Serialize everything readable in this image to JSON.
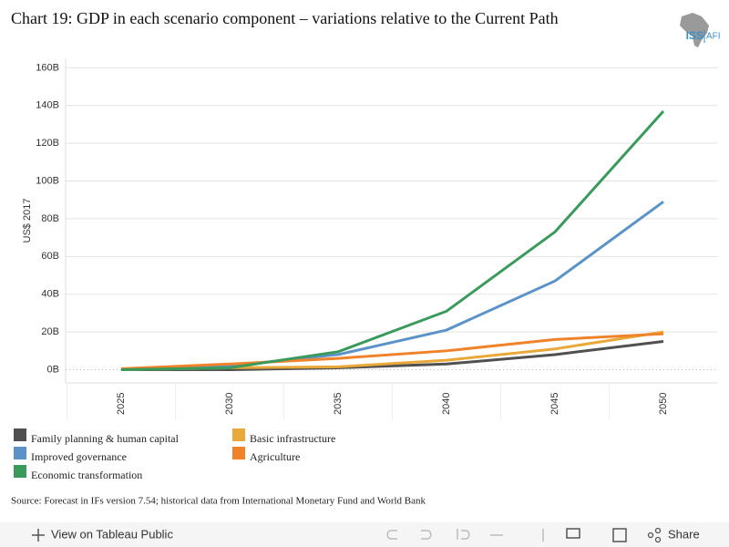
{
  "chart_data": {
    "type": "line",
    "title": "Chart 19: GDP in each scenario component – variations relative to the Current Path",
    "y_label": "US$ 2017",
    "categories": [
      "2025",
      "2030",
      "2035",
      "2040",
      "2045",
      "2050"
    ],
    "series": [
      {
        "name": "Family planning & human capital",
        "color": "#505050",
        "values": [
          0,
          0,
          1,
          3,
          8,
          15
        ]
      },
      {
        "name": "Basic infrastructure",
        "color": "#e9a83a",
        "values": [
          0,
          1,
          1.5,
          5,
          11,
          20
        ]
      },
      {
        "name": "Improved governance",
        "color": "#5b93c8",
        "values": [
          0,
          2,
          8,
          21,
          47,
          89
        ]
      },
      {
        "name": "Agriculture",
        "color": "#f0822a",
        "values": [
          0.5,
          3,
          6,
          10,
          16,
          19
        ]
      },
      {
        "name": "Economic transformation",
        "color": "#3a9a5c",
        "values": [
          0,
          1,
          9.5,
          31,
          73,
          137
        ]
      }
    ],
    "ylim": [
      -7,
      165
    ],
    "yticks": [
      {
        "value": 0,
        "label": "0B"
      },
      {
        "value": 20,
        "label": "20B"
      },
      {
        "value": 40,
        "label": "40B"
      },
      {
        "value": 60,
        "label": "60B"
      },
      {
        "value": 80,
        "label": "80B"
      },
      {
        "value": 100,
        "label": "100B"
      },
      {
        "value": 120,
        "label": "120B"
      },
      {
        "value": 140,
        "label": "140B"
      },
      {
        "value": 160,
        "label": "160B"
      }
    ],
    "grid": true,
    "source": "Source: Forecast in IFs version 7.54; historical data from International Monetary Fund and World Bank"
  },
  "logo": {
    "left": "ISS",
    "right": "AFI"
  },
  "toolbar": {
    "view": "View on Tableau Public",
    "share": "Share"
  }
}
